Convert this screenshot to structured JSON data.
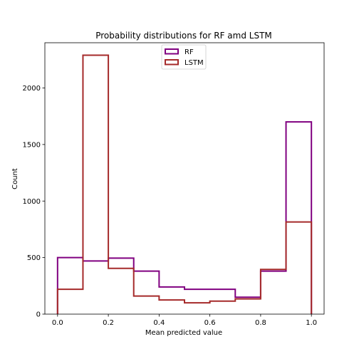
{
  "chart_data": {
    "type": "step-histogram",
    "title": "Probability distributions for RF amd LSTM",
    "xlabel": "Mean predicted value",
    "ylabel": "Count",
    "xlim": [
      -0.05,
      1.05
    ],
    "ylim": [
      0,
      2400
    ],
    "x_ticks": [
      0.0,
      0.2,
      0.4,
      0.6,
      0.8,
      1.0
    ],
    "x_tick_labels": [
      "0.0",
      "0.2",
      "0.4",
      "0.6",
      "0.8",
      "1.0"
    ],
    "y_ticks": [
      0,
      500,
      1000,
      1500,
      2000
    ],
    "y_tick_labels": [
      "0",
      "500",
      "1000",
      "1500",
      "2000"
    ],
    "bin_edges": [
      0.0,
      0.1,
      0.2,
      0.3,
      0.4,
      0.5,
      0.6,
      0.7,
      0.8,
      0.9,
      1.0
    ],
    "series": [
      {
        "name": "RF",
        "color": "#800080",
        "values": [
          500,
          470,
          495,
          380,
          240,
          220,
          220,
          150,
          380,
          1700
        ]
      },
      {
        "name": "LSTM",
        "color": "#a52a2a",
        "values": [
          220,
          2290,
          405,
          160,
          125,
          100,
          115,
          135,
          395,
          815
        ]
      }
    ],
    "grid": false,
    "legend_position": "top-center"
  }
}
